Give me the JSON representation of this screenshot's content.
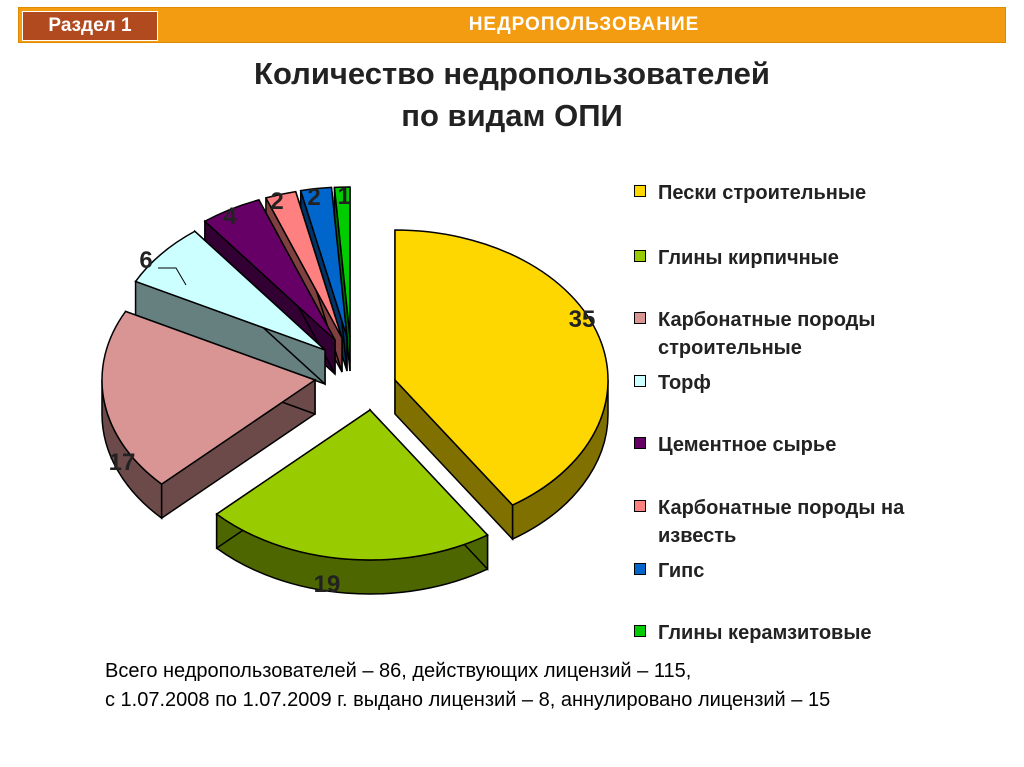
{
  "header": {
    "section_label": "Раздел 1",
    "title": "НЕДРОПОЛЬЗОВАНИЕ"
  },
  "title_line1": "Количество недропользователей",
  "title_line2": "по видам ОПИ",
  "chart_data": {
    "type": "pie",
    "title": "Количество недропользователей по видам ОПИ",
    "categories": [
      "Пески строительные",
      "Глины кирпичные",
      "Карбонатные породы строительные",
      "Торф",
      "Цементное сырье",
      "Карбонатные породы на известь",
      "Гипс",
      "Глины  керамзитовые"
    ],
    "values": [
      35,
      19,
      17,
      6,
      4,
      2,
      2,
      1
    ],
    "colors": [
      "#ffd700",
      "#99cc00",
      "#d99594",
      "#ccffff",
      "#660066",
      "#ff8080",
      "#0066cc",
      "#00cc00"
    ],
    "side_colors": [
      "#807000",
      "#4d6600",
      "#6d4a4a",
      "#667f7f",
      "#330033",
      "#804040",
      "#003366",
      "#006600"
    ],
    "legend_position": "right",
    "exploded": true,
    "three_d": true
  },
  "footer_line1": "Всего недропользователей – 86, действующих  лицензий – 115,",
  "footer_line2": "с 1.07.2008 по 1.07.2009 г. выдано лицензий – 8, аннулировано лицензий – 15"
}
